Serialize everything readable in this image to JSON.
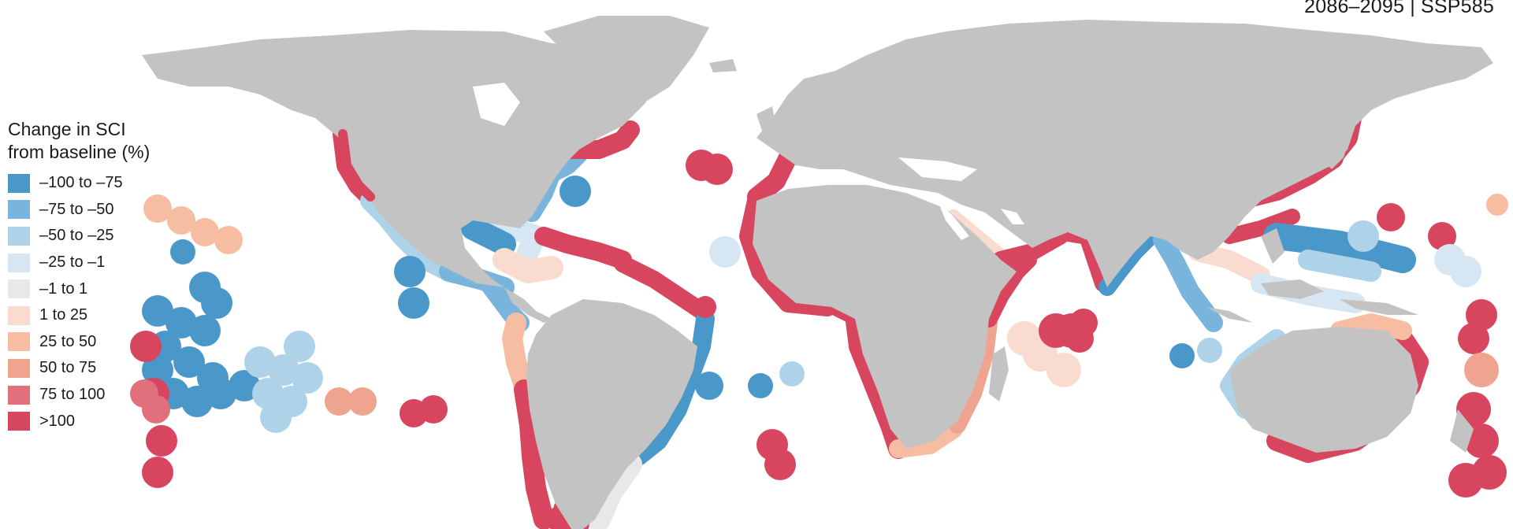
{
  "period_label": "2086–2095 | SSP585",
  "legend": {
    "title_line1": "Change in SCI",
    "title_line2": "from baseline (%)",
    "items": [
      {
        "label": "–100 to –75",
        "color": "#4a97c9"
      },
      {
        "label": "–75 to –50",
        "color": "#79b4dc"
      },
      {
        "label": "–50 to –25",
        "color": "#aed2e8"
      },
      {
        "label": "–25 to –1",
        "color": "#d6e6f2"
      },
      {
        "label": "–1 to 1",
        "color": "#e8e8e8"
      },
      {
        "label": "1 to 25",
        "color": "#fadbd0"
      },
      {
        "label": "25 to 50",
        "color": "#f6bda3"
      },
      {
        "label": "50 to 75",
        "color": "#eea48e"
      },
      {
        "label": "75 to 100",
        "color": "#e2707c"
      },
      {
        "label": ">100",
        "color": "#d8455e"
      }
    ]
  },
  "colors": {
    "land": "#c3c3c3",
    "ocean": "#ffffff"
  }
}
